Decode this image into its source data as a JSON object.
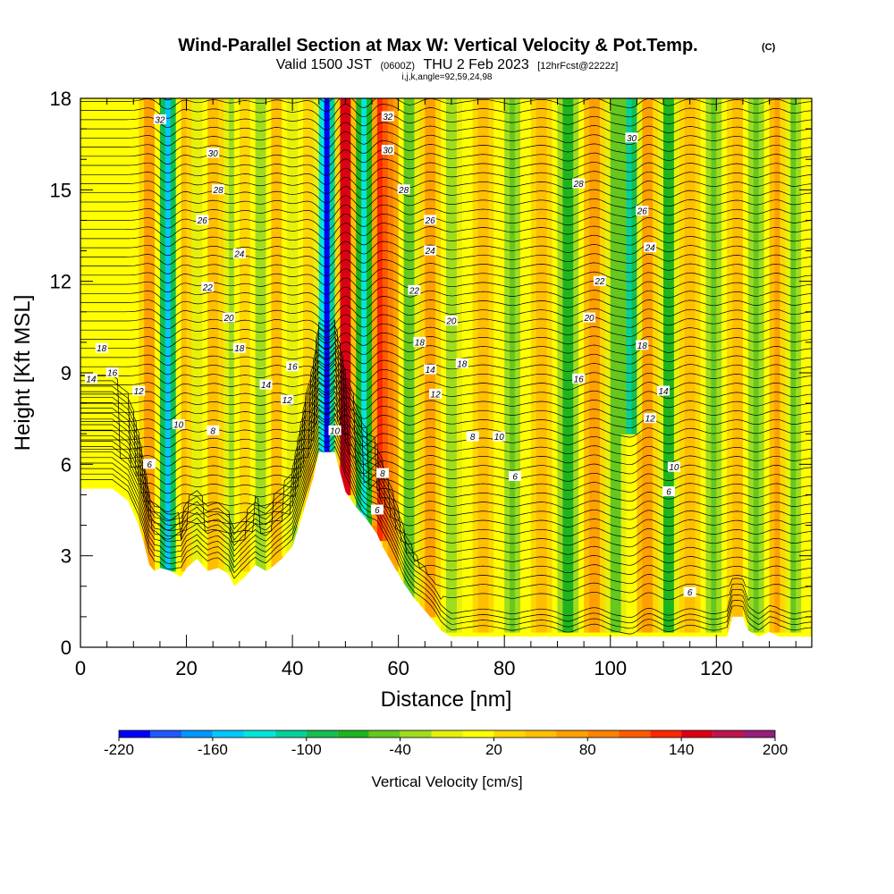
{
  "header": {
    "title": "Wind-Parallel Section at Max W: Vertical Velocity & Pot.Temp.",
    "copyright": "(C)",
    "valid_prefix": "Valid 1500 JST",
    "valid_zulu": "(0600Z)",
    "valid_date": "THU 2 Feb 2023",
    "fcst": "[12hrFcst@2222z]",
    "indices": "i,j,k,angle=92,59,24,98"
  },
  "chart_data": {
    "type": "heatmap",
    "xlabel": "Distance [nm]",
    "ylabel": "Height [Kft MSL]",
    "xlim": [
      0,
      138
    ],
    "ylim": [
      0,
      18
    ],
    "x_ticks": [
      "0",
      "20",
      "40",
      "60",
      "80",
      "100",
      "120"
    ],
    "y_ticks": [
      "0",
      "3",
      "6",
      "9",
      "12",
      "15",
      "18"
    ],
    "colorbar": {
      "label": "Vertical Velocity [cm/s]",
      "tick_labels": [
        "-220",
        "-160",
        "-100",
        "-40",
        "20",
        "80",
        "140",
        "200"
      ],
      "tick_values": [
        -220,
        -160,
        -100,
        -40,
        20,
        80,
        140,
        200
      ],
      "levels": [
        -220,
        -200,
        -180,
        -160,
        -140,
        -120,
        -100,
        -80,
        -60,
        -40,
        -20,
        0,
        20,
        40,
        60,
        80,
        100,
        120,
        140,
        160,
        180,
        200
      ],
      "colors": [
        "#0000ff",
        "#1e5aff",
        "#0096ff",
        "#00c8ff",
        "#00e6dc",
        "#00d29b",
        "#14be50",
        "#1eb41e",
        "#64c81e",
        "#a0dc1e",
        "#e6f00a",
        "#ffff00",
        "#ffd700",
        "#ffbe00",
        "#ffa000",
        "#ff8200",
        "#ff5a00",
        "#ff2800",
        "#dc0014",
        "#be1450",
        "#961e78",
        "#6e1e8c"
      ]
    },
    "terrain": [
      [
        0,
        5.2
      ],
      [
        6,
        5.2
      ],
      [
        9,
        4.8
      ],
      [
        11,
        4.0
      ],
      [
        12,
        3.4
      ],
      [
        13,
        2.7
      ],
      [
        14,
        2.5
      ],
      [
        15,
        2.6
      ],
      [
        17,
        2.5
      ],
      [
        19,
        2.3
      ],
      [
        20,
        2.6
      ],
      [
        22,
        2.9
      ],
      [
        24,
        2.5
      ],
      [
        26,
        2.6
      ],
      [
        28,
        2.4
      ],
      [
        29,
        2.0
      ],
      [
        31,
        2.3
      ],
      [
        33,
        2.7
      ],
      [
        35,
        2.5
      ],
      [
        36,
        2.6
      ],
      [
        38,
        2.9
      ],
      [
        40,
        3.3
      ],
      [
        42,
        4.4
      ],
      [
        44,
        5.6
      ],
      [
        45,
        6.4
      ],
      [
        48,
        6.4
      ],
      [
        50,
        5.1
      ],
      [
        52,
        4.6
      ],
      [
        54,
        4.2
      ],
      [
        56,
        3.7
      ],
      [
        57,
        3.3
      ],
      [
        59,
        2.7
      ],
      [
        61,
        2.1
      ],
      [
        63,
        1.6
      ],
      [
        65,
        1.2
      ],
      [
        67,
        0.8
      ],
      [
        68,
        0.55
      ],
      [
        70,
        0.35
      ],
      [
        122,
        0.35
      ],
      [
        123,
        1.0
      ],
      [
        125,
        1.0
      ],
      [
        126,
        0.55
      ],
      [
        128,
        0.35
      ],
      [
        130,
        0.5
      ],
      [
        132,
        0.35
      ],
      [
        138,
        0.35
      ]
    ],
    "w_features": [
      {
        "x": 16.5,
        "w": -170,
        "z_bottom": 2.5,
        "z_top": 18
      },
      {
        "x": 13.0,
        "w": 60,
        "z_bottom": 2.5,
        "z_top": 18
      },
      {
        "x": 19.5,
        "w": 50,
        "z_bottom": 2.5,
        "z_top": 18
      },
      {
        "x": 22.0,
        "w": -40,
        "z_bottom": 2.5,
        "z_top": 18
      },
      {
        "x": 25.0,
        "w": 40,
        "z_bottom": 2.5,
        "z_top": 18
      },
      {
        "x": 28.5,
        "w": -40,
        "z_bottom": 2.5,
        "z_top": 18
      },
      {
        "x": 31.0,
        "w": 30,
        "z_bottom": 2.5,
        "z_top": 18
      },
      {
        "x": 34.0,
        "w": -50,
        "z_bottom": 2.5,
        "z_top": 18
      },
      {
        "x": 37.0,
        "w": 40,
        "z_bottom": 2.5,
        "z_top": 18
      },
      {
        "x": 40.0,
        "w": -40,
        "z_bottom": 3.0,
        "z_top": 18
      },
      {
        "x": 43.0,
        "w": 30,
        "z_bottom": 4.0,
        "z_top": 18
      },
      {
        "x": 46.5,
        "w": -220,
        "z_bottom": 6.0,
        "z_top": 18
      },
      {
        "x": 50.0,
        "w": 150,
        "z_bottom": 5.0,
        "z_top": 18
      },
      {
        "x": 53.5,
        "w": -150,
        "z_bottom": 4.0,
        "z_top": 18
      },
      {
        "x": 56.5,
        "w": 120,
        "z_bottom": 3.5,
        "z_top": 18
      },
      {
        "x": 59.0,
        "w": 70,
        "z_bottom": 2.5,
        "z_top": 18
      },
      {
        "x": 62.0,
        "w": -80,
        "z_bottom": 1.5,
        "z_top": 18
      },
      {
        "x": 66.0,
        "w": 60,
        "z_bottom": 1.0,
        "z_top": 18
      },
      {
        "x": 70.0,
        "w": -50,
        "z_bottom": 0.4,
        "z_top": 18
      },
      {
        "x": 76.0,
        "w": 40,
        "z_bottom": 0.4,
        "z_top": 18
      },
      {
        "x": 81.5,
        "w": -60,
        "z_bottom": 0.4,
        "z_top": 18
      },
      {
        "x": 87.0,
        "w": 40,
        "z_bottom": 0.4,
        "z_top": 18
      },
      {
        "x": 92.0,
        "w": -100,
        "z_bottom": 0.4,
        "z_top": 18
      },
      {
        "x": 97.0,
        "w": 70,
        "z_bottom": 0.4,
        "z_top": 18
      },
      {
        "x": 101.0,
        "w": -70,
        "z_bottom": 0.4,
        "z_top": 18
      },
      {
        "x": 104.0,
        "w": -130,
        "z_bottom": 7.0,
        "z_top": 18
      },
      {
        "x": 107.0,
        "w": 70,
        "z_bottom": 0.4,
        "z_top": 18
      },
      {
        "x": 111.0,
        "w": -90,
        "z_bottom": 0.4,
        "z_top": 18
      },
      {
        "x": 115.0,
        "w": 50,
        "z_bottom": 0.4,
        "z_top": 18
      },
      {
        "x": 119.5,
        "w": -60,
        "z_bottom": 0.4,
        "z_top": 18
      },
      {
        "x": 124.0,
        "w": 40,
        "z_bottom": 0.4,
        "z_top": 18
      },
      {
        "x": 127.5,
        "w": -60,
        "z_bottom": 0.4,
        "z_top": 18
      },
      {
        "x": 131.5,
        "w": 50,
        "z_bottom": 0.4,
        "z_top": 18
      },
      {
        "x": 134.5,
        "w": -60,
        "z_bottom": 0.4,
        "z_top": 18
      }
    ],
    "contour_labels": [
      {
        "text": "32",
        "x": 15,
        "y": 17.3
      },
      {
        "text": "30",
        "x": 25,
        "y": 16.2
      },
      {
        "text": "28",
        "x": 26,
        "y": 15.0
      },
      {
        "text": "26",
        "x": 23,
        "y": 14.0
      },
      {
        "text": "24",
        "x": 30,
        "y": 12.9
      },
      {
        "text": "22",
        "x": 24,
        "y": 11.8
      },
      {
        "text": "20",
        "x": 28,
        "y": 10.8
      },
      {
        "text": "18",
        "x": 30,
        "y": 9.8
      },
      {
        "text": "18",
        "x": 4,
        "y": 9.8
      },
      {
        "text": "16",
        "x": 6,
        "y": 9.0
      },
      {
        "text": "14",
        "x": 2,
        "y": 8.8
      },
      {
        "text": "12",
        "x": 11,
        "y": 8.4
      },
      {
        "text": "10",
        "x": 18.5,
        "y": 7.3
      },
      {
        "text": "8",
        "x": 25,
        "y": 7.1
      },
      {
        "text": "6",
        "x": 13,
        "y": 6.0
      },
      {
        "text": "16",
        "x": 40,
        "y": 9.2
      },
      {
        "text": "14",
        "x": 35,
        "y": 8.6
      },
      {
        "text": "12",
        "x": 39,
        "y": 8.1
      },
      {
        "text": "10",
        "x": 48,
        "y": 7.1
      },
      {
        "text": "32",
        "x": 58,
        "y": 17.4
      },
      {
        "text": "30",
        "x": 58,
        "y": 16.3
      },
      {
        "text": "28",
        "x": 61,
        "y": 15.0
      },
      {
        "text": "26",
        "x": 66,
        "y": 14.0
      },
      {
        "text": "24",
        "x": 66,
        "y": 13.0
      },
      {
        "text": "22",
        "x": 63,
        "y": 11.7
      },
      {
        "text": "20",
        "x": 70,
        "y": 10.7
      },
      {
        "text": "18",
        "x": 64,
        "y": 10.0
      },
      {
        "text": "18",
        "x": 72,
        "y": 9.3
      },
      {
        "text": "14",
        "x": 66,
        "y": 9.1
      },
      {
        "text": "12",
        "x": 67,
        "y": 8.3
      },
      {
        "text": "8",
        "x": 74,
        "y": 6.9
      },
      {
        "text": "10",
        "x": 79,
        "y": 6.9
      },
      {
        "text": "6",
        "x": 82,
        "y": 5.6
      },
      {
        "text": "8",
        "x": 57,
        "y": 5.7
      },
      {
        "text": "6",
        "x": 56,
        "y": 4.5
      },
      {
        "text": "28",
        "x": 94,
        "y": 15.2
      },
      {
        "text": "30",
        "x": 104,
        "y": 16.7
      },
      {
        "text": "26",
        "x": 106,
        "y": 14.3
      },
      {
        "text": "24",
        "x": 107.5,
        "y": 13.1
      },
      {
        "text": "22",
        "x": 98,
        "y": 12.0
      },
      {
        "text": "20",
        "x": 96,
        "y": 10.8
      },
      {
        "text": "18",
        "x": 106,
        "y": 9.9
      },
      {
        "text": "16",
        "x": 94,
        "y": 8.8
      },
      {
        "text": "14",
        "x": 110,
        "y": 8.4
      },
      {
        "text": "12",
        "x": 107.5,
        "y": 7.5
      },
      {
        "text": "10",
        "x": 112,
        "y": 5.9
      },
      {
        "text": "6",
        "x": 111,
        "y": 5.1
      },
      {
        "text": "6",
        "x": 115,
        "y": 1.8
      }
    ]
  }
}
